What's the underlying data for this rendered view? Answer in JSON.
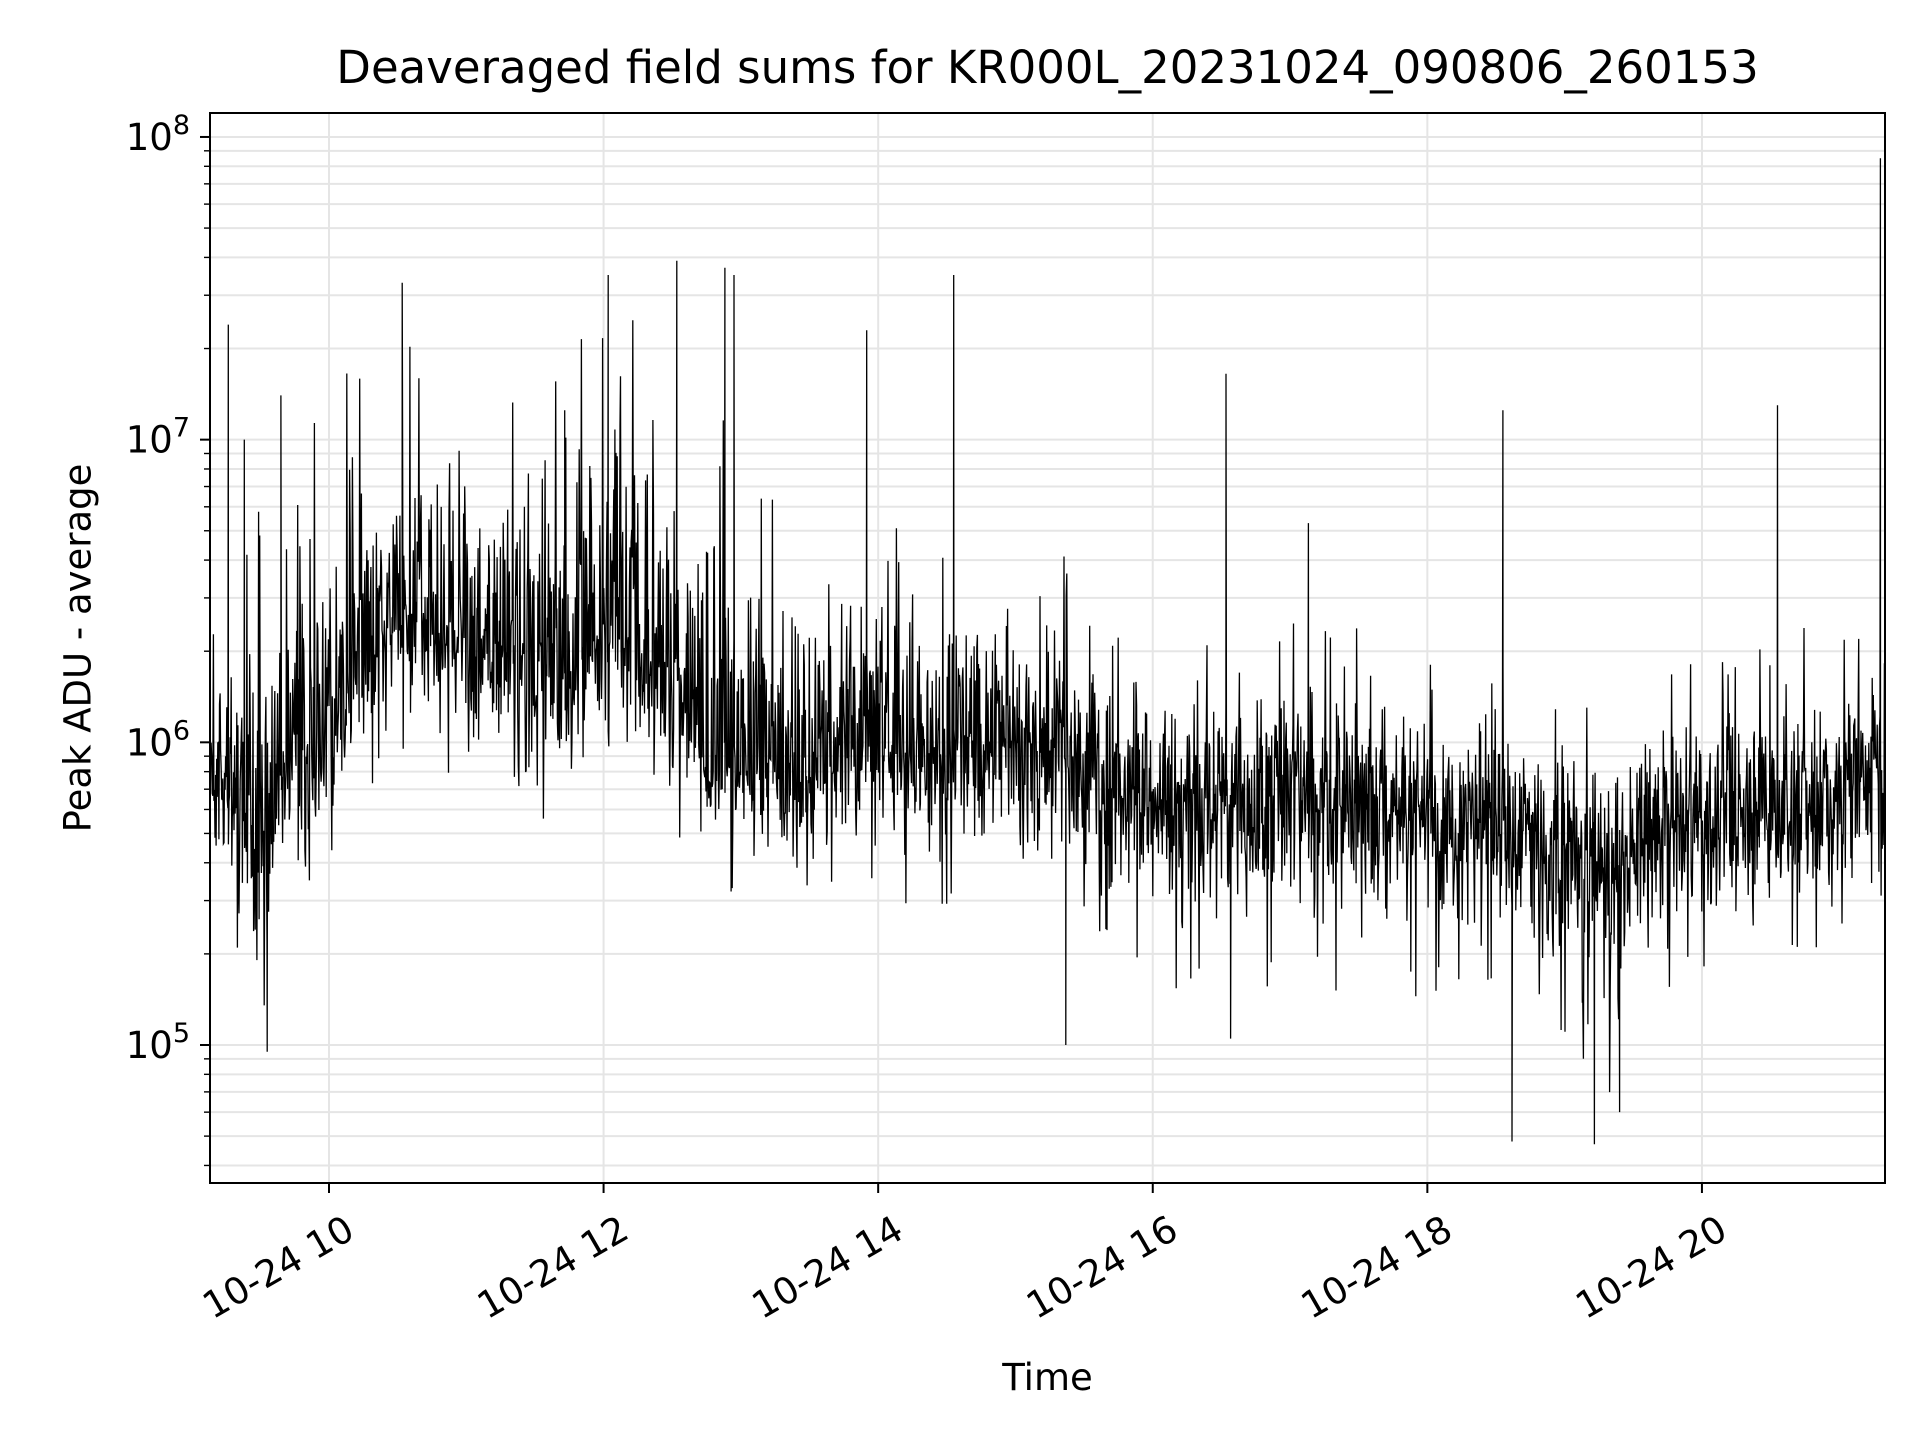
{
  "chart_data": {
    "type": "line",
    "title": "Deaveraged field sums for KR000L_20231024_090806_260153",
    "xlabel": "Time",
    "ylabel": "Peak ADU - average",
    "yscale": "log",
    "ylim": [
      35000,
      120000000
    ],
    "xlim": [
      "2023-10-24 09:08",
      "2023-10-24 21:20"
    ],
    "grid": true,
    "line_color": "#000000",
    "grid_color": "#e5e5e5",
    "x_ticks": [
      {
        "value": "2023-10-24 10:00",
        "label": "10-24 10"
      },
      {
        "value": "2023-10-24 12:00",
        "label": "10-24 12"
      },
      {
        "value": "2023-10-24 14:00",
        "label": "10-24 14"
      },
      {
        "value": "2023-10-24 16:00",
        "label": "10-24 16"
      },
      {
        "value": "2023-10-24 18:00",
        "label": "10-24 18"
      },
      {
        "value": "2023-10-24 20:00",
        "label": "10-24 20"
      }
    ],
    "y_ticks": [
      {
        "value": 100000,
        "base": "10",
        "exp": "5"
      },
      {
        "value": 1000000,
        "base": "10",
        "exp": "6"
      },
      {
        "value": 10000000,
        "base": "10",
        "exp": "7"
      },
      {
        "value": 100000000,
        "base": "10",
        "exp": "8"
      }
    ],
    "series": [
      {
        "x": [
          "2023-10-24 09:08",
          "2023-10-24 09:20",
          "2023-10-24 09:30",
          "2023-10-24 09:45",
          "2023-10-24 10:00",
          "2023-10-24 10:15",
          "2023-10-24 10:30",
          "2023-10-24 10:45",
          "2023-10-24 11:00",
          "2023-10-24 11:20",
          "2023-10-24 11:40",
          "2023-10-24 12:00",
          "2023-10-24 12:20",
          "2023-10-24 12:40",
          "2023-10-24 12:45",
          "2023-10-24 13:00",
          "2023-10-24 13:30",
          "2023-10-24 14:00",
          "2023-10-24 14:30",
          "2023-10-24 15:00",
          "2023-10-24 15:20",
          "2023-10-24 15:30",
          "2023-10-24 16:00",
          "2023-10-24 16:30",
          "2023-10-24 17:00",
          "2023-10-24 17:30",
          "2023-10-24 18:00",
          "2023-10-24 18:30",
          "2023-10-24 19:00",
          "2023-10-24 19:20",
          "2023-10-24 19:40",
          "2023-10-24 20:00",
          "2023-10-24 20:30",
          "2023-10-24 21:00",
          "2023-10-24 21:20"
        ],
        "y": [
          600000,
          700000,
          500000,
          900000,
          1100000,
          1800000,
          3000000,
          2500000,
          2000000,
          2200000,
          1800000,
          2500000,
          2200000,
          1500000,
          800000,
          900000,
          800000,
          1000000,
          900000,
          1000000,
          900000,
          700000,
          600000,
          650000,
          700000,
          650000,
          550000,
          550000,
          450000,
          350000,
          500000,
          550000,
          600000,
          700000,
          800000
        ],
        "y_lo": [
          200000,
          150000,
          100000,
          200000,
          400000,
          600000,
          800000,
          800000,
          700000,
          700000,
          500000,
          500000,
          500000,
          400000,
          350000,
          300000,
          300000,
          300000,
          250000,
          250000,
          250000,
          150000,
          150000,
          150000,
          150000,
          150000,
          120000,
          100000,
          80000,
          60000,
          150000,
          150000,
          150000,
          150000,
          150000
        ],
        "y_hi": [
          3000000,
          4000000,
          6000000,
          8000000,
          15000000,
          20000000,
          25000000,
          18000000,
          15000000,
          15000000,
          18000000,
          30000000,
          35000000,
          10000000,
          30000000,
          8000000,
          5000000,
          8000000,
          5000000,
          4000000,
          4500000,
          2500000,
          2500000,
          2500000,
          2500000,
          2500000,
          2000000,
          2000000,
          1700000,
          1800000,
          2200000,
          2200000,
          2500000,
          3000000,
          3000000
        ],
        "spikes": [
          {
            "x": "2023-10-24 09:16",
            "y": 24000000
          },
          {
            "x": "2023-10-24 09:23",
            "y": 10000000
          },
          {
            "x": "2023-10-24 09:33",
            "y": 95000
          },
          {
            "x": "2023-10-24 09:39",
            "y": 14000000
          },
          {
            "x": "2023-10-24 10:32",
            "y": 33000000
          },
          {
            "x": "2023-10-24 11:43",
            "y": 12500000
          },
          {
            "x": "2023-10-24 12:02",
            "y": 35000000
          },
          {
            "x": "2023-10-24 12:32",
            "y": 39000000
          },
          {
            "x": "2023-10-24 12:53",
            "y": 37000000
          },
          {
            "x": "2023-10-24 12:57",
            "y": 35000000
          },
          {
            "x": "2023-10-24 13:55",
            "y": 23000000
          },
          {
            "x": "2023-10-24 14:33",
            "y": 35000000
          },
          {
            "x": "2023-10-24 15:22",
            "y": 100000
          },
          {
            "x": "2023-10-24 16:32",
            "y": 16500000
          },
          {
            "x": "2023-10-24 16:34",
            "y": 105000
          },
          {
            "x": "2023-10-24 17:08",
            "y": 5300000
          },
          {
            "x": "2023-10-24 18:33",
            "y": 12500000
          },
          {
            "x": "2023-10-24 18:37",
            "y": 48000
          },
          {
            "x": "2023-10-24 19:13",
            "y": 47000
          },
          {
            "x": "2023-10-24 19:24",
            "y": 60000
          },
          {
            "x": "2023-10-24 20:33",
            "y": 13000000
          },
          {
            "x": "2023-10-24 21:18",
            "y": 85000000
          }
        ]
      }
    ]
  }
}
